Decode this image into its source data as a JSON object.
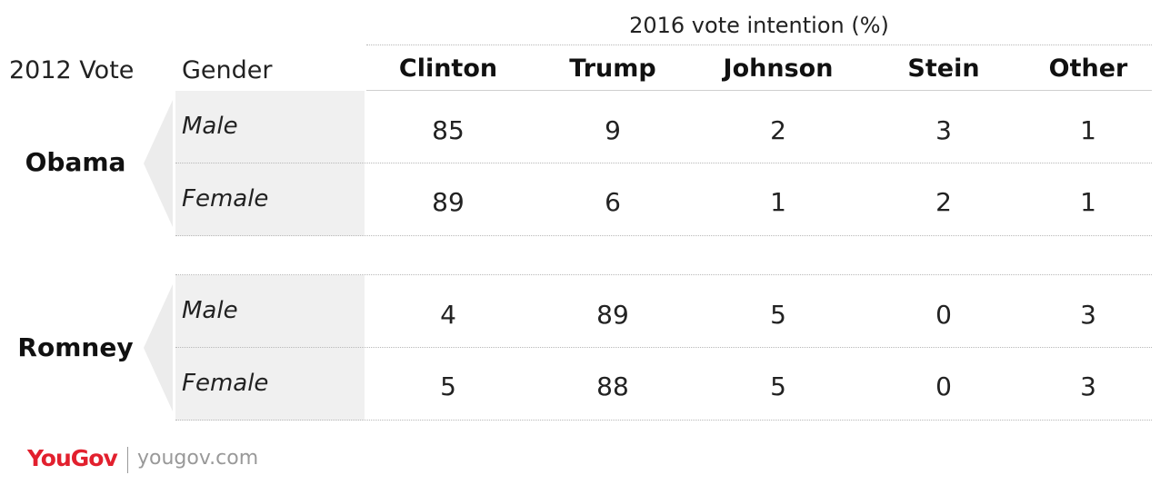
{
  "header": {
    "super_title": "2016 vote intention (%)",
    "col_2012": "2012 Vote",
    "col_gender": "Gender"
  },
  "chart_data": {
    "type": "table",
    "title": "2016 vote intention (%)",
    "columns": [
      "Clinton",
      "Trump",
      "Johnson",
      "Stein",
      "Other"
    ],
    "groups": [
      {
        "name": "Obama",
        "rows": [
          {
            "gender": "Male",
            "values": [
              85,
              9,
              2,
              3,
              1
            ]
          },
          {
            "gender": "Female",
            "values": [
              89,
              6,
              1,
              2,
              1
            ]
          }
        ]
      },
      {
        "name": "Romney",
        "rows": [
          {
            "gender": "Male",
            "values": [
              4,
              89,
              5,
              0,
              3
            ]
          },
          {
            "gender": "Female",
            "values": [
              5,
              88,
              5,
              0,
              3
            ]
          }
        ]
      }
    ]
  },
  "footer": {
    "brand_you": "You",
    "brand_gov": "Gov",
    "url": "yougov.com"
  },
  "colors": {
    "brand_red": "#e2202e",
    "band_gray": "#f0f0f0"
  }
}
